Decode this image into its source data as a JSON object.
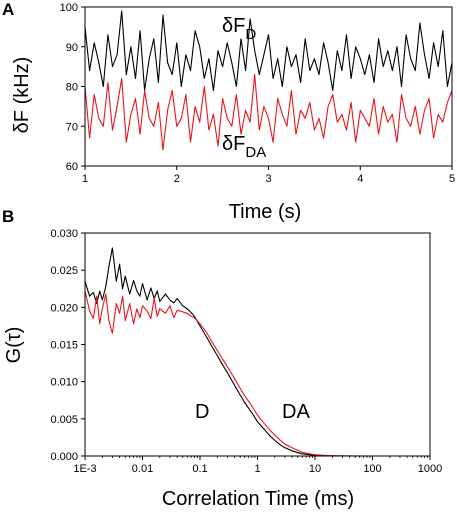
{
  "colors": {
    "donor": "#000000",
    "fret": "#e8141c",
    "axis": "#000000"
  },
  "chart_data": [
    {
      "panel": "A",
      "type": "line",
      "xlabel": "Time (s)",
      "ylabel": "δF (kHz)",
      "xlim": [
        1,
        5
      ],
      "ylim": [
        60,
        100
      ],
      "xticks": [
        1,
        2,
        3,
        4,
        5
      ],
      "yticks": [
        60,
        70,
        80,
        90,
        100
      ],
      "annotations": [
        {
          "base": "δF",
          "sub": "D"
        },
        {
          "base": "δF",
          "sub": "DA"
        }
      ],
      "series": [
        {
          "key": "D",
          "color": "#000000",
          "x": [
            1.0,
            1.05,
            1.1,
            1.15,
            1.2,
            1.25,
            1.3,
            1.35,
            1.4,
            1.45,
            1.5,
            1.55,
            1.6,
            1.65,
            1.7,
            1.75,
            1.8,
            1.85,
            1.9,
            1.95,
            2.0,
            2.05,
            2.1,
            2.15,
            2.2,
            2.25,
            2.3,
            2.35,
            2.4,
            2.45,
            2.5,
            2.55,
            2.6,
            2.65,
            2.7,
            2.75,
            2.8,
            2.85,
            2.9,
            2.95,
            3.0,
            3.05,
            3.1,
            3.15,
            3.2,
            3.25,
            3.3,
            3.35,
            3.4,
            3.45,
            3.5,
            3.55,
            3.6,
            3.65,
            3.7,
            3.75,
            3.8,
            3.85,
            3.9,
            3.95,
            4.0,
            4.05,
            4.1,
            4.15,
            4.2,
            4.25,
            4.3,
            4.35,
            4.4,
            4.45,
            4.5,
            4.55,
            4.6,
            4.65,
            4.7,
            4.75,
            4.8,
            4.85,
            4.9,
            4.95,
            5.0
          ],
          "values": [
            95,
            84,
            91,
            86,
            80,
            93,
            85,
            88,
            99,
            83,
            90,
            82,
            94,
            79,
            87,
            92,
            81,
            98,
            86,
            83,
            91,
            80,
            88,
            84,
            94,
            90,
            82,
            87,
            79,
            89,
            85,
            91,
            86,
            80,
            92,
            84,
            97,
            89,
            83,
            88,
            93,
            82,
            87,
            80,
            90,
            85,
            88,
            81,
            92,
            84,
            87,
            83,
            91,
            86,
            79,
            89,
            84,
            93,
            82,
            90,
            87,
            83,
            88,
            81,
            92,
            85,
            89,
            84,
            90,
            80,
            93,
            87,
            84,
            96,
            88,
            82,
            91,
            85,
            94,
            80,
            86
          ]
        },
        {
          "key": "DA",
          "color": "#e8141c",
          "x": [
            1.0,
            1.05,
            1.1,
            1.15,
            1.2,
            1.25,
            1.3,
            1.35,
            1.4,
            1.45,
            1.5,
            1.55,
            1.6,
            1.65,
            1.7,
            1.75,
            1.8,
            1.85,
            1.9,
            1.95,
            2.0,
            2.05,
            2.1,
            2.15,
            2.2,
            2.25,
            2.3,
            2.35,
            2.4,
            2.45,
            2.5,
            2.55,
            2.6,
            2.65,
            2.7,
            2.75,
            2.8,
            2.85,
            2.9,
            2.95,
            3.0,
            3.05,
            3.1,
            3.15,
            3.2,
            3.25,
            3.3,
            3.35,
            3.4,
            3.45,
            3.5,
            3.55,
            3.6,
            3.65,
            3.7,
            3.75,
            3.8,
            3.85,
            3.9,
            3.95,
            4.0,
            4.05,
            4.1,
            4.15,
            4.2,
            4.25,
            4.3,
            4.35,
            4.4,
            4.45,
            4.5,
            4.55,
            4.6,
            4.65,
            4.7,
            4.75,
            4.8,
            4.85,
            4.9,
            4.95,
            5.0
          ],
          "values": [
            80,
            67,
            78,
            72,
            70,
            81,
            69,
            75,
            82,
            66,
            73,
            77,
            68,
            79,
            72,
            70,
            76,
            64,
            74,
            79,
            70,
            72,
            78,
            66,
            75,
            71,
            80,
            69,
            73,
            65,
            77,
            72,
            70,
            78,
            68,
            74,
            71,
            83,
            69,
            75,
            72,
            66,
            77,
            73,
            70,
            79,
            68,
            74,
            72,
            76,
            69,
            72,
            67,
            75,
            78,
            71,
            73,
            69,
            76,
            66,
            74,
            72,
            70,
            77,
            68,
            75,
            71,
            73,
            66,
            78,
            72,
            70,
            75,
            68,
            74,
            77,
            67,
            73,
            71,
            76,
            79
          ]
        }
      ]
    },
    {
      "panel": "B",
      "type": "line",
      "xlabel": "Correlation Time (ms)",
      "ylabel": "G(τ)",
      "xscale": "log",
      "xlim": [
        0.001,
        1000
      ],
      "ylim": [
        0,
        0.03
      ],
      "xticks": [
        0.001,
        0.01,
        0.1,
        1,
        10,
        100,
        1000
      ],
      "xticklabels": [
        "1E-3",
        "0.01",
        "0.1",
        "1",
        "10",
        "100",
        "1000"
      ],
      "yticks": [
        0,
        0.005,
        0.01,
        0.015,
        0.02,
        0.025,
        0.03
      ],
      "yticklabels": [
        "0.000",
        "0.005",
        "0.010",
        "0.015",
        "0.020",
        "0.025",
        "0.030"
      ],
      "annotations": [
        "D",
        "DA"
      ],
      "series": [
        {
          "key": "D",
          "color": "#000000",
          "x": [
            0.001,
            0.0012,
            0.0014,
            0.0016,
            0.0018,
            0.002,
            0.0023,
            0.0026,
            0.003,
            0.0035,
            0.004,
            0.0045,
            0.005,
            0.006,
            0.007,
            0.008,
            0.009,
            0.01,
            0.012,
            0.014,
            0.016,
            0.018,
            0.02,
            0.025,
            0.03,
            0.035,
            0.04,
            0.05,
            0.06,
            0.07,
            0.08,
            0.1,
            0.13,
            0.16,
            0.2,
            0.25,
            0.3,
            0.4,
            0.5,
            0.6,
            0.8,
            1,
            1.3,
            1.6,
            2,
            2.5,
            3,
            4,
            5,
            6,
            8,
            10,
            13,
            16,
            20,
            30,
            50,
            100,
            300,
            1000
          ],
          "values": [
            0.0235,
            0.0215,
            0.022,
            0.0205,
            0.0222,
            0.021,
            0.0228,
            0.0255,
            0.028,
            0.0235,
            0.0258,
            0.0225,
            0.0242,
            0.0218,
            0.0236,
            0.0222,
            0.0215,
            0.0232,
            0.021,
            0.0226,
            0.0212,
            0.0222,
            0.0208,
            0.0218,
            0.021,
            0.0206,
            0.0212,
            0.0202,
            0.0198,
            0.0193,
            0.0188,
            0.0175,
            0.016,
            0.0148,
            0.0135,
            0.0122,
            0.0112,
            0.0095,
            0.0082,
            0.0072,
            0.0058,
            0.0046,
            0.0036,
            0.0028,
            0.0021,
            0.0015,
            0.0011,
            0.0007,
            0.00045,
            0.0003,
            0.00018,
            0.0001,
            6e-05,
            4e-05,
            2e-05,
            1e-05,
            5e-06,
            0,
            0,
            0
          ]
        },
        {
          "key": "DA",
          "color": "#e8141c",
          "x": [
            0.001,
            0.0012,
            0.0014,
            0.0016,
            0.0018,
            0.002,
            0.0023,
            0.0026,
            0.003,
            0.0035,
            0.004,
            0.0045,
            0.005,
            0.006,
            0.007,
            0.008,
            0.009,
            0.01,
            0.012,
            0.014,
            0.016,
            0.018,
            0.02,
            0.025,
            0.03,
            0.035,
            0.04,
            0.05,
            0.06,
            0.07,
            0.08,
            0.1,
            0.13,
            0.16,
            0.2,
            0.25,
            0.3,
            0.4,
            0.5,
            0.6,
            0.8,
            1,
            1.3,
            1.6,
            2,
            2.5,
            3,
            4,
            5,
            6,
            8,
            10,
            13,
            16,
            20,
            30,
            50,
            100,
            300,
            1000
          ],
          "values": [
            0.0222,
            0.0195,
            0.0185,
            0.0215,
            0.0178,
            0.0198,
            0.0218,
            0.0182,
            0.0165,
            0.0205,
            0.0192,
            0.0215,
            0.0182,
            0.0205,
            0.0178,
            0.0198,
            0.0186,
            0.0202,
            0.0195,
            0.0185,
            0.0212,
            0.0188,
            0.0198,
            0.0192,
            0.0202,
            0.0186,
            0.0196,
            0.0194,
            0.0192,
            0.0188,
            0.0186,
            0.0178,
            0.0166,
            0.0154,
            0.0142,
            0.013,
            0.012,
            0.0104,
            0.0091,
            0.0081,
            0.0067,
            0.0055,
            0.0044,
            0.0036,
            0.0028,
            0.0021,
            0.0016,
            0.0011,
            0.00075,
            0.0005,
            0.0003,
            0.00018,
            0.00011,
            7e-05,
            4e-05,
            2e-05,
            1e-05,
            0,
            0,
            0
          ]
        }
      ]
    }
  ]
}
